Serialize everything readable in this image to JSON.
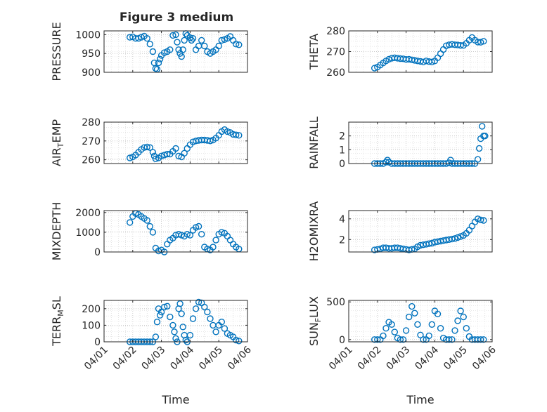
{
  "figure": {
    "title": "Figure 3 medium",
    "marker_color": "#0072BD"
  },
  "x_axis": {
    "label": "Time",
    "ticks": [
      "04/01",
      "04/02",
      "04/03",
      "04/04",
      "04/05",
      "04/06"
    ],
    "range": [
      0,
      5
    ]
  },
  "chart_data": [
    {
      "type": "scatter",
      "ylabel": "PRESSURE",
      "ylim": [
        900,
        1010
      ],
      "yticks": [
        900,
        950,
        1000
      ],
      "grid": true,
      "x": [
        0.9,
        1.0,
        1.1,
        1.2,
        1.3,
        1.4,
        1.5,
        1.6,
        1.7,
        1.75,
        1.8,
        1.85,
        1.9,
        1.95,
        2.0,
        2.1,
        2.2,
        2.3,
        2.4,
        2.5,
        2.55,
        2.6,
        2.65,
        2.7,
        2.75,
        2.8,
        2.85,
        2.9,
        3.0,
        3.05,
        3.1,
        3.2,
        3.3,
        3.4,
        3.5,
        3.6,
        3.7,
        3.8,
        3.9,
        4.0,
        4.1,
        4.2,
        4.3,
        4.4,
        4.5,
        4.6,
        4.7
      ],
      "y": [
        993,
        994,
        990,
        990,
        993,
        996,
        990,
        975,
        955,
        925,
        910,
        908,
        925,
        935,
        945,
        952,
        955,
        960,
        998,
        1000,
        980,
        960,
        950,
        942,
        960,
        985,
        1003,
        998,
        992,
        985,
        990,
        960,
        970,
        985,
        970,
        955,
        950,
        955,
        960,
        970,
        985,
        987,
        990,
        995,
        985,
        975,
        973
      ]
    },
    {
      "type": "scatter",
      "ylabel": "THETA",
      "ylim": [
        260,
        280
      ],
      "yticks": [
        260,
        270,
        280
      ],
      "grid": true,
      "x": [
        0.9,
        1.0,
        1.1,
        1.2,
        1.3,
        1.4,
        1.5,
        1.6,
        1.7,
        1.8,
        1.9,
        2.0,
        2.1,
        2.2,
        2.3,
        2.4,
        2.5,
        2.6,
        2.7,
        2.8,
        2.9,
        3.0,
        3.1,
        3.2,
        3.3,
        3.4,
        3.5,
        3.6,
        3.7,
        3.8,
        3.9,
        4.0,
        4.1,
        4.2,
        4.3,
        4.4,
        4.5,
        4.6,
        4.7
      ],
      "y": [
        262,
        262.5,
        263.5,
        264.5,
        265.5,
        266.3,
        266.8,
        267.0,
        266.8,
        266.6,
        266.5,
        266.2,
        266.3,
        266.0,
        265.8,
        265.5,
        265.3,
        265.0,
        265.5,
        265.2,
        265.0,
        265.5,
        267.0,
        269.0,
        271.0,
        272.8,
        273.3,
        273.5,
        273.3,
        273.2,
        273.0,
        273.0,
        274.0,
        275.5,
        276.8,
        275.5,
        274.6,
        274.5,
        275.0
      ]
    },
    {
      "type": "scatter",
      "ylabel": "AIR_TEMP",
      "ylim": [
        258,
        280
      ],
      "yticks": [
        260,
        270,
        280
      ],
      "grid": true,
      "x": [
        0.9,
        1.0,
        1.1,
        1.2,
        1.3,
        1.4,
        1.5,
        1.6,
        1.7,
        1.75,
        1.8,
        1.9,
        2.0,
        2.1,
        2.2,
        2.3,
        2.4,
        2.5,
        2.6,
        2.7,
        2.8,
        2.9,
        3.0,
        3.1,
        3.2,
        3.3,
        3.4,
        3.5,
        3.6,
        3.7,
        3.8,
        3.9,
        4.0,
        4.1,
        4.2,
        4.3,
        4.4,
        4.5,
        4.6,
        4.7
      ],
      "y": [
        261,
        261.5,
        262.5,
        264,
        265.5,
        266.5,
        266.8,
        266.5,
        264,
        262,
        260.5,
        261,
        262,
        262.5,
        263,
        263,
        264.5,
        266,
        262,
        261.5,
        263.5,
        266,
        268,
        269.5,
        270,
        270.3,
        270.5,
        270.5,
        270.3,
        270,
        270.5,
        271.5,
        273,
        275,
        276,
        275,
        274.5,
        273.5,
        273.2,
        273
      ]
    },
    {
      "type": "scatter",
      "ylabel": "RAINFALL",
      "ylim": [
        0,
        3
      ],
      "yticks": [
        0,
        1,
        2
      ],
      "grid": true,
      "x": [
        0.9,
        1.0,
        1.1,
        1.2,
        1.3,
        1.35,
        1.4,
        1.5,
        1.6,
        1.7,
        1.8,
        1.9,
        2.0,
        2.1,
        2.2,
        2.3,
        2.4,
        2.5,
        2.6,
        2.7,
        2.8,
        2.9,
        3.0,
        3.1,
        3.2,
        3.3,
        3.4,
        3.5,
        3.55,
        3.6,
        3.7,
        3.8,
        3.9,
        4.0,
        4.1,
        4.2,
        4.3,
        4.4,
        4.5,
        4.55,
        4.6,
        4.65,
        4.7,
        4.75
      ],
      "y": [
        0,
        0,
        0,
        0,
        0.1,
        0.25,
        0.1,
        0,
        0,
        0,
        0,
        0,
        0,
        0,
        0,
        0,
        0,
        0,
        0,
        0,
        0,
        0,
        0,
        0,
        0,
        0,
        0,
        0.05,
        0.25,
        0,
        0,
        0,
        0,
        0,
        0,
        0,
        0,
        0,
        0.3,
        1.1,
        1.8,
        2.7,
        2.0,
        2.0
      ]
    },
    {
      "type": "scatter",
      "ylabel": "MIXDEPTH",
      "ylim": [
        0,
        2100
      ],
      "yticks": [
        0,
        1000,
        2000
      ],
      "grid": true,
      "x": [
        0.9,
        1.0,
        1.1,
        1.2,
        1.3,
        1.4,
        1.5,
        1.6,
        1.7,
        1.8,
        1.9,
        2.0,
        2.1,
        2.2,
        2.3,
        2.4,
        2.5,
        2.6,
        2.7,
        2.8,
        2.9,
        3.0,
        3.1,
        3.2,
        3.3,
        3.4,
        3.5,
        3.6,
        3.7,
        3.8,
        3.9,
        4.0,
        4.1,
        4.2,
        4.3,
        4.4,
        4.5,
        4.6,
        4.7
      ],
      "y": [
        1500,
        1800,
        1950,
        1900,
        1800,
        1700,
        1600,
        1300,
        1000,
        200,
        50,
        100,
        0,
        400,
        600,
        700,
        850,
        900,
        850,
        800,
        900,
        850,
        1100,
        1250,
        1300,
        900,
        250,
        150,
        100,
        250,
        600,
        900,
        1000,
        950,
        800,
        600,
        400,
        250,
        150
      ]
    },
    {
      "type": "scatter",
      "ylabel": "H2OMIXRA",
      "ylim": [
        0.8,
        4.8
      ],
      "yticks": [
        2,
        4
      ],
      "grid": true,
      "x": [
        0.9,
        1.0,
        1.1,
        1.2,
        1.3,
        1.4,
        1.5,
        1.6,
        1.7,
        1.8,
        1.9,
        2.0,
        2.1,
        2.2,
        2.3,
        2.4,
        2.5,
        2.6,
        2.7,
        2.8,
        2.9,
        3.0,
        3.1,
        3.2,
        3.3,
        3.4,
        3.5,
        3.6,
        3.7,
        3.8,
        3.9,
        4.0,
        4.1,
        4.2,
        4.3,
        4.4,
        4.5,
        4.6,
        4.7
      ],
      "y": [
        1.0,
        1.05,
        1.1,
        1.2,
        1.2,
        1.15,
        1.15,
        1.2,
        1.2,
        1.15,
        1.1,
        1.05,
        1.0,
        1.05,
        1.1,
        1.3,
        1.45,
        1.5,
        1.55,
        1.6,
        1.65,
        1.75,
        1.8,
        1.85,
        1.9,
        1.95,
        2.0,
        2.05,
        2.1,
        2.2,
        2.3,
        2.4,
        2.6,
        2.9,
        3.3,
        3.7,
        4.0,
        3.9,
        3.85
      ]
    },
    {
      "type": "scatter",
      "ylabel": "TERR_MSL",
      "ylim": [
        0,
        250
      ],
      "yticks": [
        0,
        100,
        200
      ],
      "grid": true,
      "x": [
        0.9,
        1.0,
        1.1,
        1.2,
        1.3,
        1.4,
        1.5,
        1.6,
        1.7,
        1.8,
        1.85,
        1.9,
        1.95,
        2.0,
        2.1,
        2.2,
        2.3,
        2.4,
        2.45,
        2.5,
        2.55,
        2.6,
        2.65,
        2.7,
        2.75,
        2.8,
        2.85,
        2.9,
        3.0,
        3.1,
        3.2,
        3.3,
        3.4,
        3.5,
        3.6,
        3.7,
        3.8,
        3.9,
        4.0,
        4.1,
        4.2,
        4.3,
        4.4,
        4.5,
        4.6,
        4.7
      ],
      "y": [
        0,
        0,
        0,
        0,
        0,
        0,
        0,
        0,
        0,
        30,
        120,
        200,
        160,
        180,
        210,
        215,
        150,
        100,
        60,
        20,
        0,
        200,
        230,
        170,
        90,
        40,
        10,
        0,
        40,
        140,
        200,
        240,
        235,
        210,
        180,
        140,
        100,
        60,
        100,
        120,
        80,
        50,
        40,
        30,
        10,
        5
      ]
    },
    {
      "type": "scatter",
      "ylabel": "SUN_FLUX",
      "ylim": [
        -30,
        520
      ],
      "yticks": [
        0,
        500
      ],
      "grid": true,
      "x": [
        0.9,
        1.0,
        1.1,
        1.2,
        1.3,
        1.4,
        1.5,
        1.6,
        1.7,
        1.8,
        1.9,
        2.0,
        2.1,
        2.2,
        2.3,
        2.4,
        2.5,
        2.6,
        2.7,
        2.8,
        2.9,
        3.0,
        3.1,
        3.2,
        3.3,
        3.4,
        3.5,
        3.6,
        3.7,
        3.8,
        3.9,
        4.0,
        4.1,
        4.2,
        4.3,
        4.4,
        4.5,
        4.6,
        4.7
      ],
      "y": [
        0,
        0,
        0,
        50,
        150,
        230,
        200,
        100,
        20,
        0,
        0,
        120,
        300,
        440,
        350,
        200,
        60,
        0,
        0,
        50,
        200,
        380,
        340,
        150,
        20,
        0,
        0,
        0,
        120,
        250,
        380,
        300,
        150,
        40,
        0,
        0,
        0,
        0,
        0
      ]
    }
  ]
}
